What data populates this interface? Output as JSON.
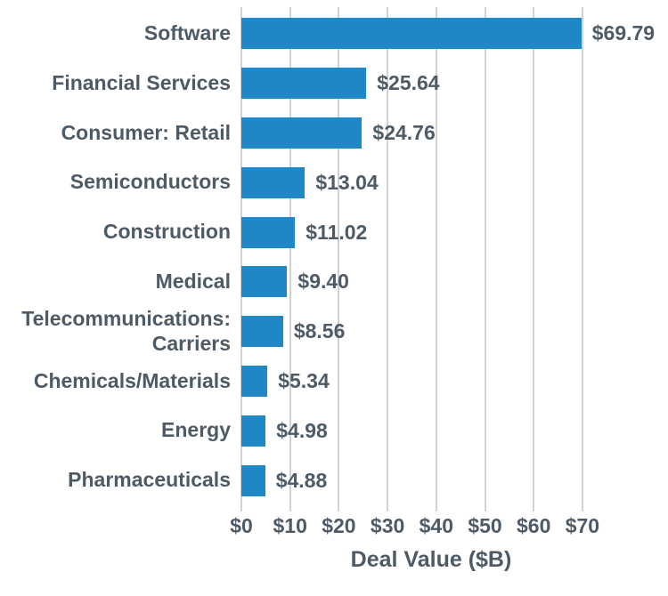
{
  "chart_data": {
    "type": "bar",
    "orientation": "horizontal",
    "title": "",
    "xlabel": "Deal Value ($B)",
    "ylabel": "",
    "categories": [
      "Software",
      "Financial Services",
      "Consumer: Retail",
      "Semiconductors",
      "Construction",
      "Medical",
      "Telecommunications: Carriers",
      "Chemicals/Materials",
      "Energy",
      "Pharmaceuticals"
    ],
    "values": [
      69.79,
      25.64,
      24.76,
      13.04,
      11.02,
      9.4,
      8.56,
      5.34,
      4.98,
      4.88
    ],
    "value_labels": [
      "$69.79",
      "$25.64",
      "$24.76",
      "$13.04",
      "$11.02",
      "$9.40",
      "$8.56",
      "$5.34",
      "$4.98",
      "$4.88"
    ],
    "x_ticks": [
      {
        "value": 0,
        "label": "$0"
      },
      {
        "value": 10,
        "label": "$10"
      },
      {
        "value": 20,
        "label": "$20"
      },
      {
        "value": 30,
        "label": "$30"
      },
      {
        "value": 40,
        "label": "$40"
      },
      {
        "value": 50,
        "label": "$50"
      },
      {
        "value": 60,
        "label": "$60"
      },
      {
        "value": 70,
        "label": "$70"
      }
    ],
    "xlim": [
      0,
      70
    ],
    "grid": "vertical",
    "legend": "none",
    "colors": {
      "bar": "#1e88c7",
      "text": "#4e5b66",
      "gridline": "#d2d2d2"
    }
  }
}
